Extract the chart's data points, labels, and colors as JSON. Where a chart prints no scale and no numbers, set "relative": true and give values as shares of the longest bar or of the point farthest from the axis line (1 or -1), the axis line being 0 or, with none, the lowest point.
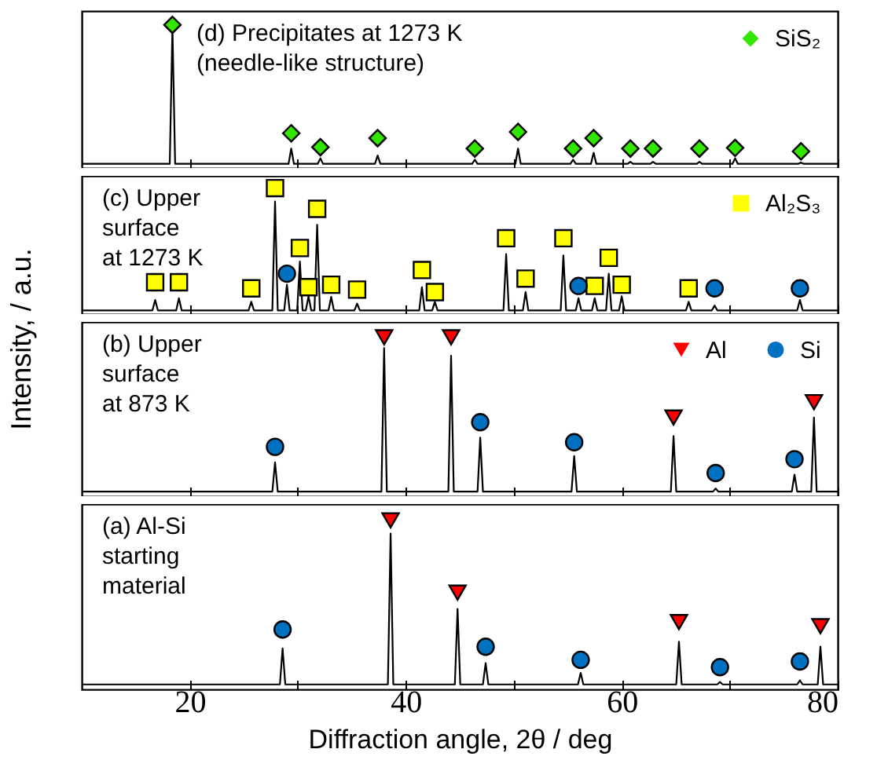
{
  "chart_data": [
    {
      "type": "line",
      "relative": true,
      "xlim": [
        10,
        80
      ],
      "xticks": [
        20,
        {
          "value": 30,
          "label": null
        },
        40,
        {
          "value": 50,
          "label": null
        },
        60,
        {
          "value": 70,
          "label": null
        },
        80
      ],
      "tick_labels": false,
      "legend": "top right",
      "annotations": [
        "(d) Precipitates at 1273 K\n(needle-like structure)"
      ],
      "series": [
        {
          "type": "line",
          "color": "#000000",
          "x": [
            10,
            18.15,
            18.4,
            18.65,
            29.15,
            29.4,
            29.65,
            31.85,
            32.1,
            32.35,
            37.15,
            37.4,
            37.65,
            46.15,
            46.4,
            46.65,
            50.15,
            50.4,
            50.65,
            55.25,
            55.5,
            55.75,
            57.15,
            57.4,
            57.65,
            60.55,
            60.8,
            61.05,
            62.65,
            62.9,
            63.15,
            66.95,
            67.2,
            67.45,
            70.25,
            70.5,
            70.75,
            76.35,
            76.6,
            76.85,
            80
          ],
          "values": [
            0,
            0,
            0.98,
            0,
            0,
            0.11,
            0,
            0,
            0.04,
            0,
            0,
            0.06,
            0,
            0,
            0.03,
            0,
            0,
            0.11,
            0,
            0,
            0.03,
            0,
            0,
            0.08,
            0,
            0,
            0.015,
            0,
            0,
            0.015,
            0,
            0,
            0.015,
            0,
            0,
            0.04,
            0,
            0,
            0.01,
            0,
            0
          ]
        },
        {
          "type": "scatter",
          "name": "SiS₂",
          "marker": "diamond",
          "color": "#33e600",
          "x": [
            18.4,
            29.4,
            32.1,
            37.4,
            46.4,
            50.4,
            55.5,
            57.4,
            60.8,
            62.9,
            67.2,
            70.5,
            76.6
          ],
          "values": [
            1.0,
            0.22,
            0.12,
            0.185,
            0.11,
            0.23,
            0.11,
            0.185,
            0.11,
            0.11,
            0.11,
            0.115,
            0.09
          ]
        }
      ]
    },
    {
      "type": "line",
      "relative": true,
      "xlim": [
        10,
        80
      ],
      "xticks": [
        20,
        {
          "value": 30,
          "label": null
        },
        40,
        {
          "value": 50,
          "label": null
        },
        60,
        {
          "value": 70,
          "label": null
        },
        80
      ],
      "tick_labels": false,
      "legend": "top right",
      "annotations": [
        "(c) Upper\nsurface\nat 1273 K"
      ],
      "series": [
        {
          "type": "line",
          "color": "#000000",
          "x": [
            10,
            16.55,
            16.8,
            17.05,
            18.75,
            19.0,
            19.25,
            25.45,
            25.7,
            25.95,
            27.65,
            27.9,
            28.15,
            28.75,
            29.0,
            29.25,
            29.95,
            30.2,
            30.45,
            30.75,
            31.0,
            31.25,
            31.55,
            31.8,
            32.05,
            32.85,
            33.1,
            33.35,
            35.25,
            35.5,
            35.75,
            41.25,
            41.5,
            41.75,
            42.45,
            42.7,
            42.95,
            49.05,
            49.3,
            49.55,
            50.85,
            51.1,
            51.35,
            54.35,
            54.6,
            54.85,
            55.75,
            56.0,
            56.25,
            57.25,
            57.5,
            57.75,
            58.55,
            58.8,
            59.05,
            59.75,
            60.0,
            60.25,
            65.95,
            66.2,
            66.45,
            68.35,
            68.6,
            68.85,
            76.25,
            76.5,
            76.75,
            80
          ],
          "values": [
            0,
            0,
            0.085,
            0,
            0,
            0.1,
            0,
            0,
            0.07,
            0,
            0,
            0.89,
            0,
            0,
            0.21,
            0,
            0,
            0.4,
            0,
            0,
            0.115,
            0,
            0,
            0.7,
            0,
            0,
            0.11,
            0,
            0,
            0.055,
            0,
            0,
            0.19,
            0,
            0,
            0.07,
            0,
            0,
            0.46,
            0,
            0,
            0.15,
            0,
            0,
            0.45,
            0,
            0,
            0.1,
            0,
            0,
            0.1,
            0,
            0,
            0.3,
            0,
            0,
            0.115,
            0,
            0,
            0.07,
            0,
            0,
            0.04,
            0,
            0,
            0.085,
            0,
            0
          ]
        },
        {
          "type": "scatter",
          "name": "Al₂S₃",
          "marker": "square",
          "color": "#ffff00",
          "x": [
            16.8,
            19.0,
            25.7,
            27.9,
            30.2,
            31.0,
            31.8,
            33.1,
            35.5,
            41.5,
            42.7,
            49.3,
            51.1,
            54.6,
            57.5,
            58.8,
            60.0,
            66.2
          ],
          "values": [
            0.23,
            0.23,
            0.18,
            1.0,
            0.51,
            0.19,
            0.83,
            0.21,
            0.17,
            0.33,
            0.15,
            0.59,
            0.26,
            0.59,
            0.2,
            0.43,
            0.21,
            0.18
          ]
        },
        {
          "type": "scatter",
          "marker": "circle",
          "color": "#0070c0",
          "x": [
            29.0,
            56.0,
            68.6,
            76.5
          ],
          "values": [
            0.3,
            0.2,
            0.18,
            0.18
          ]
        }
      ]
    },
    {
      "type": "line",
      "relative": true,
      "xlim": [
        10,
        80
      ],
      "xticks": [
        20,
        {
          "value": 30,
          "label": null
        },
        40,
        {
          "value": 50,
          "label": null
        },
        60,
        {
          "value": 70,
          "label": null
        },
        80
      ],
      "tick_labels": false,
      "legend": "top right",
      "ylabel": "Intensity, / a.u.",
      "annotations": [
        "(b) Upper\nsurface\nat 873 K"
      ],
      "series": [
        {
          "type": "line",
          "color": "#000000",
          "x": [
            10,
            27.65,
            27.9,
            28.15,
            37.75,
            38.0,
            38.25,
            43.95,
            44.2,
            44.45,
            46.65,
            46.9,
            47.15,
            55.35,
            55.6,
            55.85,
            64.55,
            64.8,
            65.05,
            68.45,
            68.7,
            68.95,
            75.75,
            76.0,
            76.25,
            77.55,
            77.8,
            78.05,
            80
          ],
          "values": [
            0,
            0,
            0.19,
            0,
            0,
            0.93,
            0,
            0,
            0.88,
            0,
            0,
            0.35,
            0,
            0,
            0.23,
            0,
            0,
            0.36,
            0,
            0,
            0.02,
            0,
            0,
            0.11,
            0,
            0,
            0.48,
            0,
            0
          ]
        },
        {
          "type": "scatter",
          "name": "Al",
          "marker": "triangle",
          "color": "#ff0000",
          "x": [
            38.0,
            44.2,
            64.8,
            77.8
          ],
          "values": [
            1.0,
            1.0,
            0.48,
            0.58
          ]
        },
        {
          "type": "scatter",
          "name": "Si",
          "marker": "circle",
          "color": "#0070c0",
          "x": [
            27.9,
            46.9,
            55.6,
            68.7,
            76.0
          ],
          "values": [
            0.29,
            0.45,
            0.32,
            0.12,
            0.21
          ]
        }
      ]
    },
    {
      "type": "line",
      "relative": true,
      "xlim": [
        10,
        80
      ],
      "xticks": [
        20,
        {
          "value": 30,
          "label": null
        },
        40,
        {
          "value": 50,
          "label": null
        },
        60,
        {
          "value": 70,
          "label": null
        },
        80
      ],
      "tick_labels": "x",
      "xlabel": "Diffraction angle, 2θ / deg",
      "annotations": [
        "(a) Al-Si\nstarting\nmaterial"
      ],
      "series": [
        {
          "type": "line",
          "color": "#000000",
          "x": [
            10,
            28.35,
            28.6,
            28.85,
            38.35,
            38.6,
            38.85,
            44.55,
            44.8,
            45.05,
            47.15,
            47.4,
            47.65,
            55.95,
            56.2,
            56.45,
            65.05,
            65.3,
            65.55,
            68.85,
            69.1,
            69.35,
            76.25,
            76.5,
            76.75,
            78.15,
            78.4,
            78.65,
            80
          ],
          "values": [
            0,
            0,
            0.22,
            0,
            0,
            0.92,
            0,
            0,
            0.46,
            0,
            0,
            0.13,
            0,
            0,
            0.07,
            0,
            0,
            0.26,
            0,
            0,
            0.015,
            0,
            0,
            0.025,
            0,
            0,
            0.23,
            0,
            0
          ]
        },
        {
          "type": "scatter",
          "marker": "triangle",
          "color": "#ff0000",
          "x": [
            38.6,
            44.8,
            65.3,
            78.4
          ],
          "values": [
            1.0,
            0.56,
            0.38,
            0.355
          ]
        },
        {
          "type": "scatter",
          "marker": "circle",
          "color": "#0070c0",
          "x": [
            28.6,
            47.4,
            56.2,
            69.1,
            76.5
          ],
          "values": [
            0.335,
            0.23,
            0.15,
            0.105,
            0.14
          ]
        }
      ]
    }
  ]
}
